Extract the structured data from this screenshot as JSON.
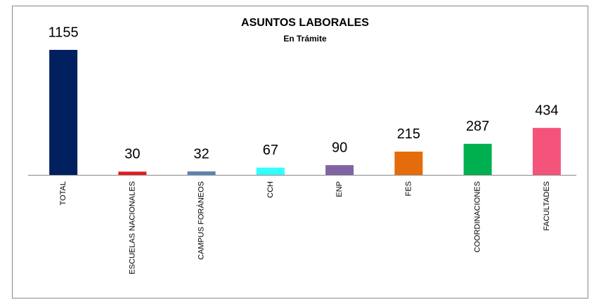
{
  "chart_data": {
    "type": "bar",
    "title": "ASUNTOS LABORALES",
    "subtitle": "En Trámite",
    "categories": [
      "TOTAL",
      "ESCUELAS NACIONALES",
      "CAMPUS FORÁNEOS",
      "CCH",
      "ENP",
      "FES",
      "COORDINACIONES",
      "FACULTADES"
    ],
    "values": [
      1155,
      30,
      32,
      67,
      90,
      215,
      287,
      434
    ],
    "colors": [
      "#002060",
      "#e31a1c",
      "#5b84b1",
      "#33ffff",
      "#8064a2",
      "#e46c0a",
      "#00b050",
      "#f4547a"
    ]
  }
}
